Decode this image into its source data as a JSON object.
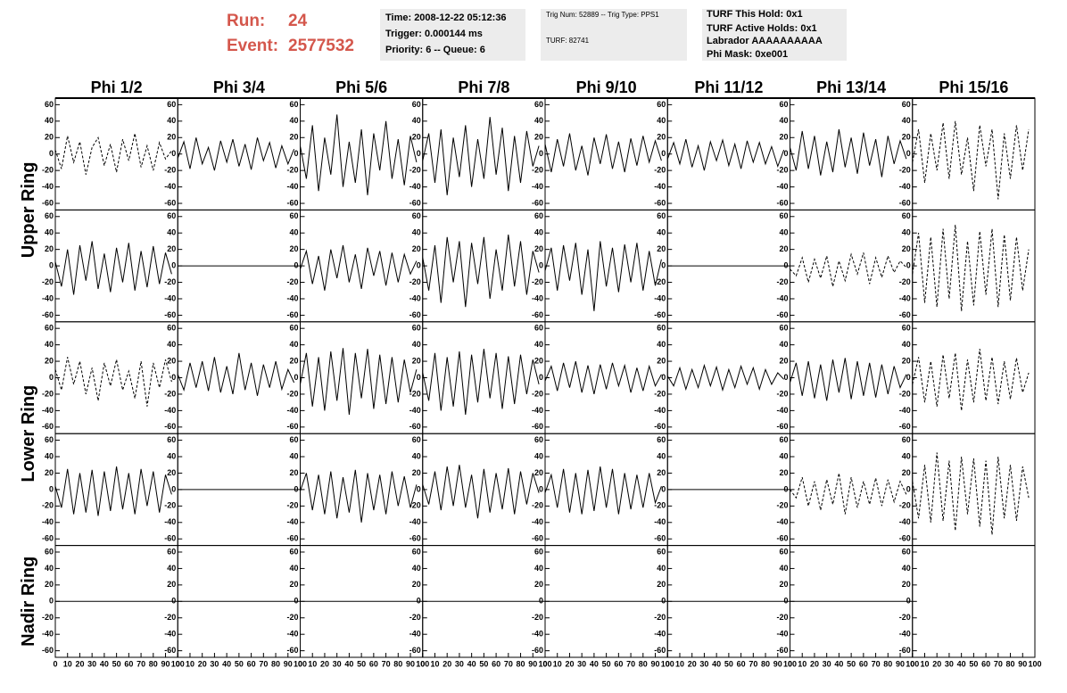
{
  "header": {
    "run_label": "Run:",
    "run": "24",
    "event_label": "Event:",
    "event": "2577532",
    "box1": [
      "Time: 2008-12-22 05:12:36",
      "Trigger: 0.000144 ms",
      "Priority: 6 -- Queue: 6"
    ],
    "box2": [
      "Trig Num: 52889 -- Trig Type: PPS1",
      "TURF: 82741"
    ],
    "box3": [
      "TURF This Hold: 0x1",
      "TURF Active Holds: 0x1",
      "Labrador AAAAAAAAAA",
      "Phi Mask: 0xe001"
    ]
  },
  "chart_data": {
    "type": "line",
    "color": "#000000",
    "columns": [
      "Phi 1/2",
      "Phi 3/4",
      "Phi 5/6",
      "Phi 7/8",
      "Phi 9/10",
      "Phi 11/12",
      "Phi 13/14",
      "Phi 15/16"
    ],
    "ring_labels": [
      "Upper Ring",
      "Lower Ring",
      "Nadir Ring"
    ],
    "xlim": [
      0,
      100
    ],
    "xticks": [
      0,
      10,
      20,
      30,
      40,
      50,
      60,
      70,
      80,
      90,
      100
    ],
    "ylim": [
      -68,
      68
    ],
    "yticks": [
      -60,
      -40,
      -20,
      0,
      20,
      40,
      60
    ],
    "x": [
      0,
      5,
      10,
      15,
      20,
      25,
      30,
      35,
      40,
      45,
      50,
      55,
      60,
      65,
      70,
      75,
      80,
      85,
      90,
      95
    ],
    "panels": [
      [
        {
          "style": "dashed",
          "values": [
            5,
            -18,
            22,
            -10,
            15,
            -25,
            8,
            20,
            -14,
            12,
            -22,
            18,
            -8,
            25,
            -16,
            10,
            -20,
            14,
            -6,
            4
          ]
        },
        {
          "style": "solid",
          "values": [
            -5,
            15,
            -18,
            20,
            -12,
            8,
            -20,
            16,
            -10,
            18,
            -15,
            12,
            -19,
            20,
            -8,
            14,
            -17,
            10,
            -12,
            6
          ]
        },
        {
          "style": "solid",
          "values": [
            10,
            -30,
            35,
            -45,
            20,
            -25,
            48,
            -40,
            15,
            -35,
            30,
            -50,
            25,
            -20,
            40,
            -30,
            18,
            -38,
            22,
            -10
          ]
        },
        {
          "style": "solid",
          "values": [
            -8,
            25,
            -35,
            30,
            -50,
            20,
            -28,
            35,
            -40,
            18,
            -30,
            45,
            -25,
            32,
            -45,
            22,
            -35,
            28,
            -15,
            10
          ]
        },
        {
          "style": "solid",
          "values": [
            12,
            -22,
            18,
            -15,
            25,
            -20,
            10,
            -26,
            20,
            -12,
            24,
            -18,
            15,
            -22,
            19,
            -14,
            22,
            -10,
            16,
            -8
          ]
        },
        {
          "style": "solid",
          "values": [
            -6,
            14,
            -12,
            18,
            -16,
            10,
            -20,
            15,
            -8,
            17,
            -14,
            12,
            -18,
            16,
            -10,
            14,
            -12,
            9,
            -15,
            5
          ]
        },
        {
          "style": "solid",
          "values": [
            8,
            -20,
            28,
            -18,
            22,
            -26,
            15,
            -22,
            30,
            -16,
            20,
            -24,
            26,
            -14,
            18,
            -28,
            22,
            -12,
            16,
            -6
          ]
        },
        {
          "style": "dashed",
          "values": [
            -10,
            30,
            -35,
            25,
            -20,
            38,
            -30,
            40,
            -25,
            20,
            -45,
            35,
            -15,
            30,
            -55,
            25,
            -30,
            35,
            -20,
            30
          ]
        }
      ],
      [
        {
          "style": "solid",
          "values": [
            5,
            -25,
            20,
            -35,
            25,
            -18,
            30,
            -28,
            15,
            -32,
            22,
            -20,
            28,
            -30,
            18,
            -26,
            24,
            -22,
            16,
            -10
          ]
        },
        {
          "style": "solid",
          "x": [
            0,
            100
          ],
          "values": [
            0,
            0
          ]
        },
        {
          "style": "solid",
          "values": [
            -4,
            18,
            -22,
            12,
            -30,
            20,
            -15,
            25,
            -20,
            14,
            -28,
            22,
            -12,
            18,
            -24,
            16,
            -20,
            14,
            -10,
            6
          ]
        },
        {
          "style": "solid",
          "values": [
            10,
            -30,
            25,
            -45,
            35,
            -20,
            30,
            -50,
            28,
            -22,
            35,
            -40,
            20,
            -30,
            38,
            -25,
            30,
            -35,
            18,
            -8
          ]
        },
        {
          "style": "solid",
          "values": [
            -6,
            22,
            -30,
            25,
            -18,
            28,
            -35,
            20,
            -55,
            30,
            -25,
            22,
            -32,
            26,
            -20,
            28,
            -30,
            18,
            -24,
            8
          ]
        },
        {
          "style": "solid",
          "x": [
            0,
            100
          ],
          "values": [
            0,
            0
          ]
        },
        {
          "style": "dashed",
          "values": [
            -4,
            -12,
            10,
            -20,
            8,
            -15,
            12,
            -25,
            6,
            -18,
            14,
            -10,
            16,
            -22,
            10,
            -14,
            12,
            -8,
            6,
            -2
          ]
        },
        {
          "style": "dashed",
          "values": [
            -10,
            40,
            -45,
            35,
            -50,
            45,
            -40,
            50,
            -55,
            30,
            -48,
            42,
            -35,
            45,
            -50,
            38,
            -42,
            35,
            -30,
            20
          ]
        }
      ],
      [
        {
          "style": "dashed",
          "values": [
            10,
            -15,
            25,
            -8,
            20,
            -20,
            12,
            -28,
            18,
            -10,
            22,
            -15,
            8,
            -25,
            20,
            -35,
            18,
            -12,
            22,
            -5
          ]
        },
        {
          "style": "solid",
          "values": [
            4,
            -15,
            18,
            -12,
            20,
            -16,
            25,
            -18,
            14,
            -20,
            30,
            -15,
            18,
            -22,
            16,
            -12,
            20,
            -14,
            10,
            -6
          ]
        },
        {
          "style": "solid",
          "values": [
            -8,
            30,
            -35,
            25,
            -40,
            32,
            -28,
            36,
            -45,
            30,
            -25,
            35,
            -38,
            28,
            -32,
            25,
            -30,
            22,
            -18,
            10
          ]
        },
        {
          "style": "solid",
          "values": [
            6,
            -28,
            30,
            -40,
            25,
            -35,
            32,
            -45,
            28,
            -30,
            35,
            -25,
            30,
            -38,
            26,
            -32,
            28,
            -20,
            22,
            -8
          ]
        },
        {
          "style": "solid",
          "values": [
            -4,
            14,
            -16,
            18,
            -12,
            20,
            -18,
            15,
            -20,
            16,
            -14,
            18,
            -10,
            15,
            -18,
            12,
            -16,
            14,
            -10,
            4
          ]
        },
        {
          "style": "solid",
          "values": [
            2,
            -10,
            12,
            -14,
            10,
            -12,
            15,
            -10,
            13,
            -15,
            10,
            -12,
            14,
            -8,
            12,
            -14,
            10,
            -8,
            6,
            -2
          ]
        },
        {
          "style": "solid",
          "values": [
            -6,
            18,
            -22,
            20,
            -25,
            16,
            -28,
            22,
            -18,
            24,
            -26,
            20,
            -22,
            18,
            -24,
            16,
            -20,
            14,
            -12,
            4
          ]
        },
        {
          "style": "dashed",
          "values": [
            -8,
            25,
            -30,
            20,
            -35,
            28,
            -25,
            30,
            -40,
            22,
            -30,
            35,
            -28,
            25,
            -32,
            20,
            -26,
            24,
            -18,
            6
          ]
        }
      ],
      [
        {
          "style": "solid",
          "values": [
            4,
            -22,
            25,
            -30,
            20,
            -28,
            24,
            -32,
            22,
            -26,
            28,
            -24,
            20,
            -30,
            25,
            -20,
            22,
            -28,
            18,
            -6
          ]
        },
        {
          "style": "solid",
          "x": [
            0,
            100
          ],
          "values": [
            0,
            0
          ]
        },
        {
          "style": "solid",
          "values": [
            -2,
            20,
            -25,
            18,
            -30,
            22,
            -35,
            15,
            -28,
            24,
            -40,
            20,
            -25,
            18,
            -30,
            22,
            -20,
            16,
            -22,
            6
          ]
        },
        {
          "style": "solid",
          "values": [
            6,
            -18,
            22,
            -25,
            28,
            -20,
            30,
            -22,
            18,
            -35,
            25,
            -28,
            20,
            -24,
            26,
            -30,
            22,
            -18,
            20,
            -4
          ]
        },
        {
          "style": "solid",
          "values": [
            -4,
            18,
            -22,
            25,
            -28,
            20,
            -30,
            24,
            -26,
            28,
            -22,
            25,
            -30,
            20,
            -24,
            18,
            -22,
            20,
            -16,
            4
          ]
        },
        {
          "style": "solid",
          "x": [
            0,
            100
          ],
          "values": [
            0,
            0
          ]
        },
        {
          "style": "dashed",
          "values": [
            0,
            -10,
            15,
            -20,
            10,
            -25,
            12,
            -18,
            20,
            -30,
            15,
            -22,
            10,
            -18,
            14,
            -20,
            12,
            -15,
            10,
            -6
          ]
        },
        {
          "style": "dashed",
          "values": [
            10,
            -35,
            30,
            -40,
            45,
            -38,
            35,
            -50,
            40,
            -30,
            38,
            -45,
            35,
            -55,
            40,
            -35,
            30,
            -38,
            28,
            -10
          ]
        }
      ],
      [
        {
          "style": "solid",
          "x": [
            0,
            100
          ],
          "values": [
            0,
            0
          ]
        },
        {
          "style": "solid",
          "x": [
            0,
            100
          ],
          "values": [
            0,
            0
          ]
        },
        {
          "style": "solid",
          "x": [
            0,
            100
          ],
          "values": [
            0,
            0
          ]
        },
        {
          "style": "solid",
          "x": [
            0,
            100
          ],
          "values": [
            0,
            0
          ]
        },
        {
          "style": "solid",
          "x": [
            0,
            100
          ],
          "values": [
            0,
            0
          ]
        },
        {
          "style": "solid",
          "x": [
            0,
            100
          ],
          "values": [
            0,
            0
          ]
        },
        {
          "style": "solid",
          "x": [
            0,
            100
          ],
          "values": [
            0,
            0
          ]
        },
        null
      ]
    ]
  }
}
